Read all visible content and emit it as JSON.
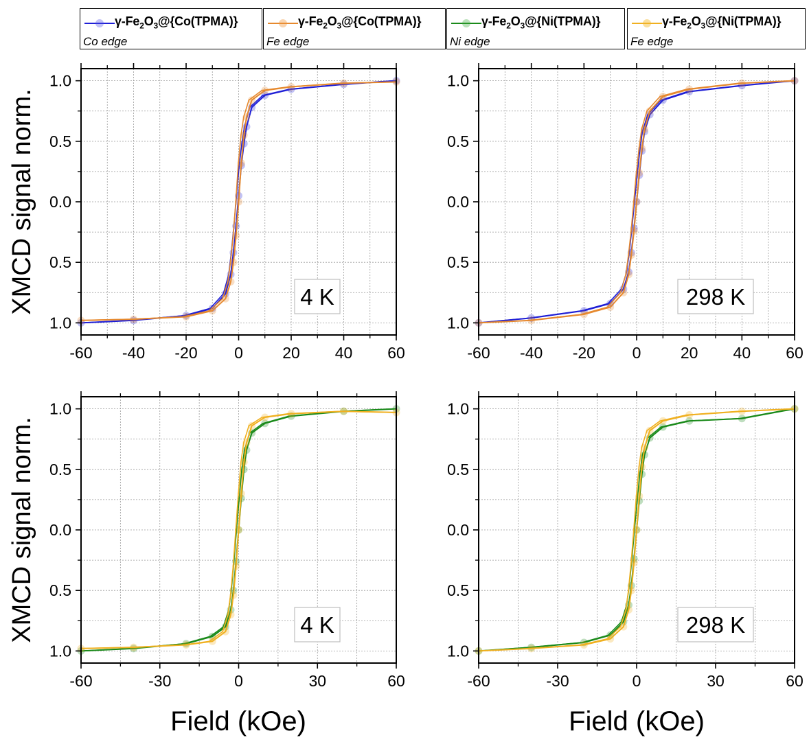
{
  "legend": [
    {
      "name_pre": "γ-Fe",
      "sub1": "2",
      "name_mid": "O",
      "sub2": "3",
      "name_post": "@{Co(TPMA)}",
      "edge": "Co edge",
      "color": "#1f1fd6"
    },
    {
      "name_pre": "γ-Fe",
      "sub1": "2",
      "name_mid": "O",
      "sub2": "3",
      "name_post": "@{Co(TPMA)}",
      "edge": "Fe edge",
      "color": "#e6892e"
    },
    {
      "name_pre": "γ-Fe",
      "sub1": "2",
      "name_mid": "O",
      "sub2": "3",
      "name_post": "@{Ni(TPMA)}",
      "edge": "Ni edge",
      "color": "#1a8a1a"
    },
    {
      "name_pre": "γ-Fe",
      "sub1": "2",
      "name_mid": "O",
      "sub2": "3",
      "name_post": "@{Ni(TPMA)}",
      "edge": "Fe edge",
      "color": "#f0b020"
    }
  ],
  "axes": {
    "ylabel": "XMCD signal norm.",
    "xlabel": "Field (kOe)"
  },
  "chart_data": [
    {
      "type": "line",
      "panel": "top-left",
      "temperature_label": "4 K",
      "xlim": [
        -60,
        60
      ],
      "ylim": [
        -1.1,
        1.1
      ],
      "xticks": [
        -60,
        -40,
        -20,
        0,
        20,
        40,
        60
      ],
      "xtick_labels": [
        "-60",
        "-40",
        "-20",
        "0",
        "20",
        "40",
        "60"
      ],
      "yticks": [
        1.0,
        0.5,
        0.0,
        -0.5,
        -1.0
      ],
      "ytick_labels": [
        "1.0",
        "0.5",
        "0.0",
        "0.5",
        "1.0"
      ],
      "grid": true,
      "series": [
        {
          "name": "γ-Fe2O3@{Co(TPMA)} Co edge",
          "color": "#1f1fd6",
          "x": [
            -60,
            -40,
            -20,
            -10,
            -5,
            -3,
            -2,
            -1,
            0,
            1,
            2,
            3,
            5,
            10,
            20,
            40,
            60
          ],
          "y": [
            -1.0,
            -0.98,
            -0.94,
            -0.88,
            -0.76,
            -0.6,
            -0.42,
            -0.2,
            0.05,
            0.3,
            0.48,
            0.62,
            0.78,
            0.88,
            0.93,
            0.97,
            1.0
          ]
        },
        {
          "name": "γ-Fe2O3@{Co(TPMA)} Fe edge",
          "color": "#e6892e",
          "x": [
            -60,
            -40,
            -20,
            -10,
            -5,
            -3,
            -2,
            -1,
            0,
            1,
            2,
            3,
            5,
            10,
            20,
            40,
            60
          ],
          "y": [
            -0.98,
            -0.97,
            -0.95,
            -0.9,
            -0.8,
            -0.66,
            -0.5,
            -0.28,
            0.0,
            0.32,
            0.55,
            0.7,
            0.84,
            0.92,
            0.95,
            0.98,
            0.99
          ]
        }
      ]
    },
    {
      "type": "line",
      "panel": "top-right",
      "temperature_label": "298 K",
      "xlim": [
        -60,
        60
      ],
      "ylim": [
        -1.1,
        1.1
      ],
      "xticks": [
        -60,
        -40,
        -20,
        0,
        20,
        40,
        60
      ],
      "xtick_labels": [
        "-60",
        "-40",
        "-20",
        "0",
        "20",
        "40",
        "60"
      ],
      "yticks": [
        1.0,
        0.5,
        0.0,
        -0.5,
        -1.0
      ],
      "ytick_labels": [
        "1.0",
        "0.5",
        "0.0",
        "0.5",
        "1.0"
      ],
      "grid": true,
      "series": [
        {
          "name": "γ-Fe2O3@{Co(TPMA)} Co edge",
          "color": "#1f1fd6",
          "x": [
            -60,
            -40,
            -20,
            -10,
            -5,
            -3,
            -2,
            -1,
            0,
            1,
            2,
            3,
            5,
            10,
            20,
            40,
            60
          ],
          "y": [
            -1.0,
            -0.96,
            -0.9,
            -0.84,
            -0.72,
            -0.58,
            -0.42,
            -0.22,
            0.0,
            0.22,
            0.42,
            0.58,
            0.72,
            0.84,
            0.91,
            0.96,
            1.0
          ]
        },
        {
          "name": "γ-Fe2O3@{Co(TPMA)} Fe edge",
          "color": "#e6892e",
          "x": [
            -60,
            -40,
            -20,
            -10,
            -5,
            -3,
            -2,
            -1,
            0,
            1,
            2,
            3,
            5,
            10,
            20,
            40,
            60
          ],
          "y": [
            -1.0,
            -0.98,
            -0.93,
            -0.87,
            -0.75,
            -0.6,
            -0.44,
            -0.24,
            0.0,
            0.24,
            0.44,
            0.6,
            0.75,
            0.87,
            0.93,
            0.98,
            1.0
          ]
        }
      ]
    },
    {
      "type": "line",
      "panel": "bottom-left",
      "temperature_label": "4 K",
      "xlim": [
        -60,
        60
      ],
      "ylim": [
        -1.1,
        1.1
      ],
      "xticks": [
        -60,
        -30,
        0,
        30,
        60
      ],
      "xtick_labels": [
        "-60",
        "-30",
        "0",
        "30",
        "60"
      ],
      "yticks": [
        1.0,
        0.5,
        0.0,
        -0.5,
        -1.0
      ],
      "ytick_labels": [
        "1.0",
        "0.5",
        "0.0",
        "0.5",
        "1.0"
      ],
      "grid": true,
      "series": [
        {
          "name": "γ-Fe2O3@{Ni(TPMA)} Ni edge",
          "color": "#1a8a1a",
          "x": [
            -60,
            -40,
            -20,
            -10,
            -5,
            -3,
            -2,
            -1,
            0,
            1,
            2,
            3,
            5,
            10,
            20,
            40,
            60
          ],
          "y": [
            -1.0,
            -0.98,
            -0.94,
            -0.88,
            -0.8,
            -0.66,
            -0.5,
            -0.26,
            0.0,
            0.26,
            0.5,
            0.66,
            0.8,
            0.88,
            0.94,
            0.98,
            1.0
          ]
        },
        {
          "name": "γ-Fe2O3@{Ni(TPMA)} Fe edge",
          "color": "#f0b020",
          "x": [
            -60,
            -40,
            -20,
            -10,
            -5,
            -3,
            -2,
            -1,
            0,
            1,
            2,
            3,
            5,
            10,
            20,
            40,
            60
          ],
          "y": [
            -0.98,
            -0.97,
            -0.95,
            -0.92,
            -0.84,
            -0.7,
            -0.54,
            -0.3,
            0.0,
            0.3,
            0.56,
            0.72,
            0.86,
            0.93,
            0.96,
            0.98,
            0.97
          ]
        }
      ]
    },
    {
      "type": "line",
      "panel": "bottom-right",
      "temperature_label": "298 K",
      "xlim": [
        -60,
        60
      ],
      "ylim": [
        -1.1,
        1.1
      ],
      "xticks": [
        -60,
        -30,
        0,
        30,
        60
      ],
      "xtick_labels": [
        "-60",
        "-30",
        "0",
        "30",
        "60"
      ],
      "yticks": [
        1.0,
        0.5,
        0.0,
        -0.5,
        -1.0
      ],
      "ytick_labels": [
        "1.0",
        "0.5",
        "0.0",
        "0.5",
        "1.0"
      ],
      "grid": true,
      "series": [
        {
          "name": "γ-Fe2O3@{Ni(TPMA)} Ni edge",
          "color": "#1a8a1a",
          "x": [
            -60,
            -40,
            -20,
            -10,
            -5,
            -3,
            -2,
            -1,
            0,
            1,
            2,
            3,
            5,
            10,
            20,
            40,
            60
          ],
          "y": [
            -1.0,
            -0.97,
            -0.93,
            -0.87,
            -0.76,
            -0.62,
            -0.46,
            -0.24,
            0.0,
            0.24,
            0.46,
            0.62,
            0.76,
            0.85,
            0.9,
            0.92,
            1.0
          ]
        },
        {
          "name": "γ-Fe2O3@{Ni(TPMA)} Fe edge",
          "color": "#f0b020",
          "x": [
            -60,
            -40,
            -20,
            -10,
            -5,
            -3,
            -2,
            -1,
            0,
            1,
            2,
            3,
            5,
            10,
            20,
            40,
            60
          ],
          "y": [
            -1.0,
            -0.98,
            -0.95,
            -0.9,
            -0.8,
            -0.66,
            -0.5,
            -0.27,
            0.0,
            0.28,
            0.52,
            0.68,
            0.82,
            0.9,
            0.95,
            0.98,
            1.0
          ]
        }
      ]
    }
  ]
}
